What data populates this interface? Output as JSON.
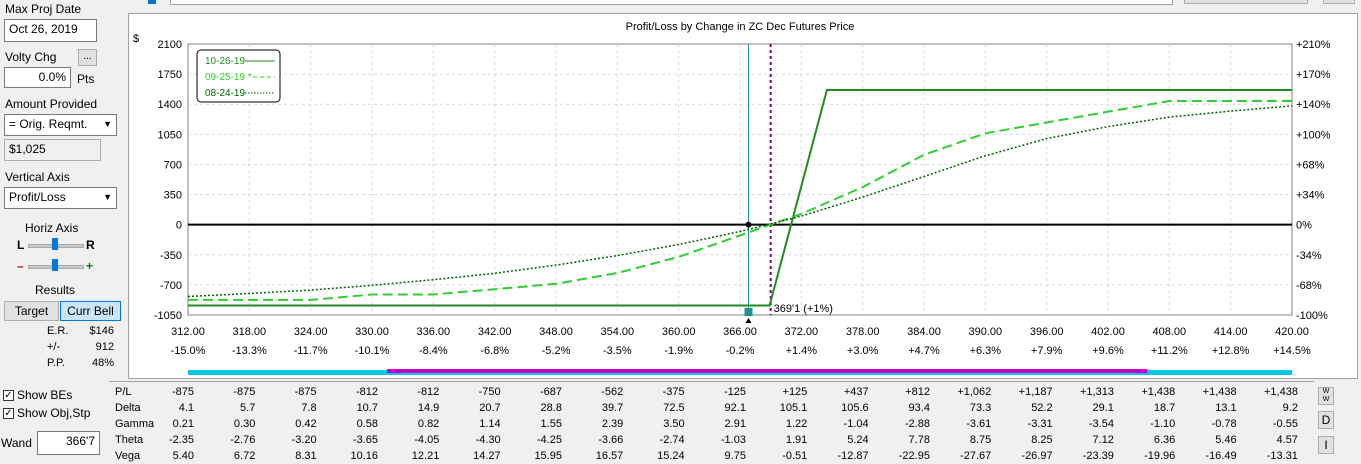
{
  "left_panel": {
    "max_proj_date_label": "Max Proj Date",
    "max_proj_date_value": "Oct 26, 2019",
    "volty_chg_label": "Volty Chg",
    "volty_more_label": "...",
    "volty_chg_value": "0.0%",
    "volty_unit": "Pts",
    "amount_provided_label": "Amount Provided",
    "amount_provided_selected": "= Orig. Reqmt.",
    "amount_value": "$1,025",
    "vertical_axis_label": "Vertical Axis",
    "vertical_axis_selected": "Profit/Loss",
    "horiz_axis_label": "Horiz Axis",
    "horiz_l": "L",
    "horiz_r": "R",
    "minus": "–",
    "plus": "+",
    "results_label": "Results",
    "target_button": "Target",
    "curr_bell_button": "Curr Bell",
    "stats": [
      {
        "label": "E.R.",
        "value": "$146"
      },
      {
        "label": "+/-",
        "value": "912"
      },
      {
        "label": "P.P.",
        "value": "48%"
      }
    ],
    "show_bes_label": "Show BEs",
    "show_bes_checked": true,
    "show_obj_label": "Show Obj,Stp",
    "show_obj_checked": true,
    "wand_label": "Wand",
    "wand_value": "366'7"
  },
  "chart_data": {
    "type": "line",
    "title": "Profit/Loss by Change in ZC Dec Futures Price",
    "ylabel": "$",
    "ylim": [
      -1050,
      2100
    ],
    "xlim": [
      312,
      420
    ],
    "x_ticks": [
      "312.00",
      "318.00",
      "324.00",
      "330.00",
      "336.00",
      "342.00",
      "348.00",
      "354.00",
      "360.00",
      "366.00",
      "372.00",
      "378.00",
      "384.00",
      "390.00",
      "396.00",
      "402.00",
      "408.00",
      "414.00",
      "420.00"
    ],
    "x_pct_ticks": [
      "-15.0%",
      "-13.3%",
      "-11.7%",
      "-10.1%",
      "-8.4%",
      "-6.8%",
      "-5.2%",
      "-3.5%",
      "-1.9%",
      "-0.2%",
      "+1.4%",
      "+3.0%",
      "+4.7%",
      "+6.3%",
      "+7.9%",
      "+9.6%",
      "+11.2%",
      "+12.8%",
      "+14.5%"
    ],
    "y_ticks": [
      {
        "v": 2100,
        "l": "2100",
        "r": "+210%"
      },
      {
        "v": 1750,
        "l": "1750",
        "r": "+170%"
      },
      {
        "v": 1400,
        "l": "1400",
        "r": "+140%"
      },
      {
        "v": 1050,
        "l": "1050",
        "r": "+100%"
      },
      {
        "v": 700,
        "l": "700",
        "r": "+68%"
      },
      {
        "v": 350,
        "l": "350",
        "r": "+34%"
      },
      {
        "v": 0,
        "l": "0",
        "r": "0%"
      },
      {
        "v": -350,
        "l": "-350",
        "r": "-34%"
      },
      {
        "v": -700,
        "l": "-700",
        "r": "-68%"
      },
      {
        "v": -1050,
        "l": "-1050",
        "r": "-100%"
      }
    ],
    "series": [
      {
        "name": "10-26-19",
        "color": "#228b22",
        "style": "solid",
        "x": [
          312,
          366.5,
          368.9,
          374.5,
          420
        ],
        "y": [
          -940,
          -940,
          -940,
          1565,
          1565
        ]
      },
      {
        "name": "09-25-19 *",
        "color": "#32cd32",
        "style": "dashed",
        "x": [
          312,
          318,
          324,
          330,
          336,
          342,
          348,
          354,
          360,
          366,
          372,
          378,
          384,
          390,
          396,
          402,
          408,
          414,
          420
        ],
        "y": [
          -875,
          -875,
          -875,
          -812,
          -812,
          -750,
          -687,
          -562,
          -375,
          -125,
          125,
          437,
          812,
          1062,
          1187,
          1313,
          1438,
          1438,
          1438
        ]
      },
      {
        "name": "08-24-19",
        "color": "#006400",
        "style": "dotted",
        "x": [
          312,
          318,
          324,
          330,
          336,
          342,
          348,
          354,
          360,
          366,
          372,
          378,
          384,
          390,
          396,
          402,
          408,
          414,
          420
        ],
        "y": [
          -835,
          -800,
          -760,
          -705,
          -640,
          -565,
          -470,
          -360,
          -230,
          -80,
          100,
          320,
          560,
          800,
          1000,
          1140,
          1250,
          1320,
          1380
        ]
      }
    ],
    "current_price_x": 366.83,
    "current_price_marker_y": 0,
    "target_x": 369.0,
    "target_label": "369'1 (+1%)",
    "legend_position": "top-left",
    "grid": true
  },
  "greeks": {
    "row_labels": [
      "P/L",
      "Delta",
      "Gamma",
      "Theta",
      "Vega"
    ],
    "rows": [
      [
        "-875",
        "-875",
        "-875",
        "-812",
        "-812",
        "-750",
        "-687",
        "-562",
        "-375",
        "-125",
        "+125",
        "+437",
        "+812",
        "+1,062",
        "+1,187",
        "+1,313",
        "+1,438",
        "+1,438",
        "+1,438"
      ],
      [
        "4.1",
        "5.7",
        "7.8",
        "10.7",
        "14.9",
        "20.7",
        "28.8",
        "39.7",
        "72.5",
        "92.1",
        "105.1",
        "105.6",
        "93.4",
        "73.3",
        "52.2",
        "29.1",
        "18.7",
        "13.1",
        "9.2"
      ],
      [
        "0.21",
        "0.30",
        "0.42",
        "0.58",
        "0.82",
        "1.14",
        "1.55",
        "2.39",
        "3.50",
        "2.91",
        "1.22",
        "-1.04",
        "-2.88",
        "-3.61",
        "-3.31",
        "-3.54",
        "-1.10",
        "-0.78",
        "-0.55"
      ],
      [
        "-2.35",
        "-2.76",
        "-3.20",
        "-3.65",
        "-4.05",
        "-4.30",
        "-4.25",
        "-3.66",
        "-2.74",
        "-1.03",
        "1.91",
        "5.24",
        "7.78",
        "8.75",
        "8.25",
        "7.12",
        "6.36",
        "5.46",
        "4.57"
      ],
      [
        "5.40",
        "6.72",
        "8.31",
        "10.16",
        "12.21",
        "14.27",
        "15.95",
        "16.57",
        "15.24",
        "9.75",
        "-0.51",
        "-12.87",
        "-22.95",
        "-27.67",
        "-26.97",
        "-23.39",
        "-19.96",
        "-16.49",
        "-13.31"
      ]
    ],
    "side_buttons": [
      "W",
      "D",
      "I"
    ]
  }
}
